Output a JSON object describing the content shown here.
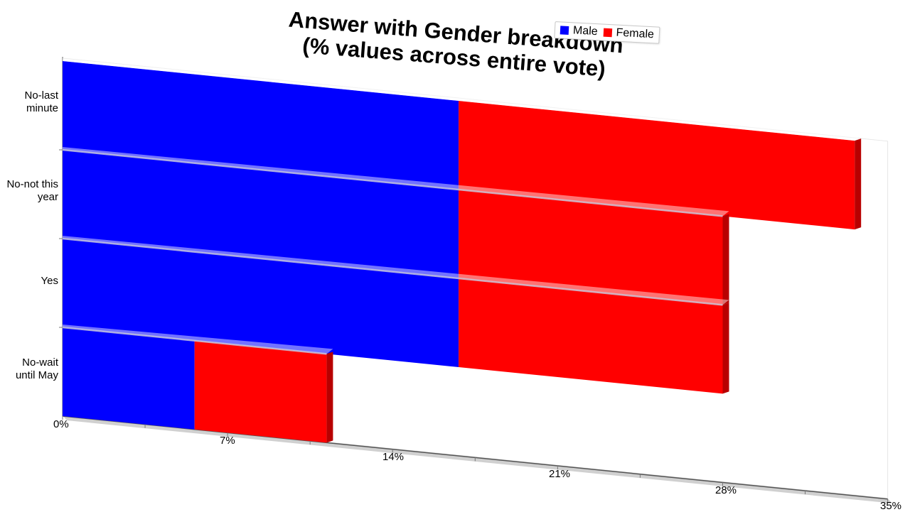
{
  "chart_data": {
    "type": "bar",
    "orientation": "horizontal",
    "stacked": true,
    "title": [
      "Answer with Gender breakdown",
      "(% values across entire vote)"
    ],
    "categories": [
      "No-last\nminute",
      "No-not this\nyear",
      "Yes",
      "No-wait\nuntil May"
    ],
    "series": [
      {
        "name": "Male",
        "color": "#0000ff",
        "values": [
          16.8,
          16.8,
          16.8,
          5.6
        ]
      },
      {
        "name": "Female",
        "color": "#ff0000",
        "values": [
          16.8,
          11.2,
          11.2,
          5.6
        ]
      }
    ],
    "xaxis": {
      "min": 0,
      "max": 35,
      "ticks": [
        "0%",
        "7%",
        "14%",
        "21%",
        "28%",
        "35%"
      ]
    },
    "legend_position": "top-right",
    "grid": false,
    "three_d": true
  }
}
